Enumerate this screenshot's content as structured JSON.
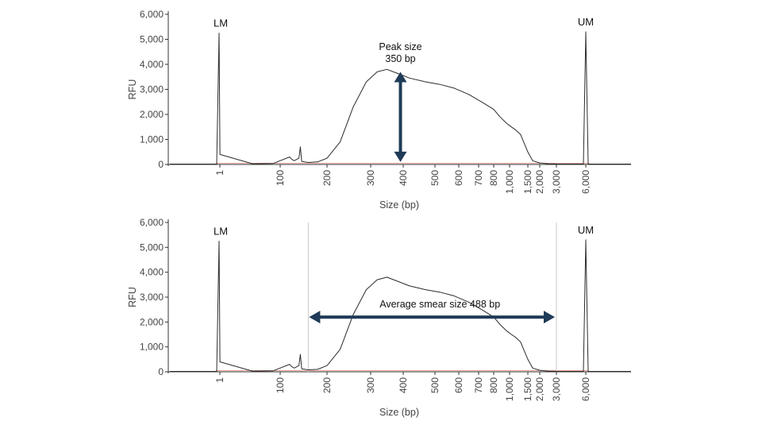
{
  "chart_data": [
    {
      "type": "line",
      "ylabel": "RFU",
      "xlabel": "Size (bp)",
      "ylim": [
        0,
        6000
      ],
      "y_ticks": [
        "6,000",
        "5,000",
        "4,000",
        "3,000",
        "2,000",
        "1,000",
        "0"
      ],
      "y_tick_values": [
        6000,
        5000,
        4000,
        3000,
        2000,
        1000,
        0
      ],
      "x_ticks": [
        "1",
        "100",
        "200",
        "300",
        "400",
        "500",
        "600",
        "700",
        "800",
        "1,000",
        "1,500",
        "2,000",
        "3,000",
        "6,000"
      ],
      "x_tick_values": [
        1,
        100,
        200,
        300,
        400,
        500,
        600,
        700,
        800,
        1000,
        1500,
        2000,
        3000,
        6000
      ],
      "markers": [
        {
          "label": "LM",
          "size": 1,
          "rfu": 5250
        },
        {
          "label": "UM",
          "size": 6000,
          "rfu": 5300
        }
      ],
      "series": [
        {
          "x": [
            1,
            1.2,
            60,
            90,
            120,
            125,
            130,
            140,
            143,
            146,
            160,
            180,
            200,
            230,
            260,
            290,
            320,
            350,
            380,
            420,
            470,
            520,
            580,
            650,
            720,
            800,
            880,
            960,
            1050,
            1150,
            1300,
            1500,
            1700,
            2000,
            2500,
            3000
          ],
          "y": [
            5250,
            400,
            30,
            40,
            300,
            200,
            150,
            250,
            700,
            120,
            80,
            100,
            250,
            900,
            2300,
            3300,
            3700,
            3800,
            3650,
            3450,
            3300,
            3200,
            3050,
            2800,
            2500,
            2200,
            1900,
            1650,
            1500,
            1400,
            1200,
            500,
            150,
            60,
            30,
            20
          ]
        }
      ],
      "annotation": {
        "text_line1": "Peak size",
        "text_line2": "350 bp",
        "size": 350,
        "rfu_from": 3700,
        "rfu_to": 100
      }
    },
    {
      "type": "line",
      "ylabel": "RFU",
      "xlabel": "Size (bp)",
      "ylim": [
        0,
        6000
      ],
      "y_ticks": [
        "6,000",
        "5,000",
        "4,000",
        "3,000",
        "2,000",
        "1,000",
        "0"
      ],
      "y_tick_values": [
        6000,
        5000,
        4000,
        3000,
        2000,
        1000,
        0
      ],
      "x_ticks": [
        "1",
        "100",
        "200",
        "300",
        "400",
        "500",
        "600",
        "700",
        "800",
        "1,000",
        "1,500",
        "2,000",
        "3,000",
        "6,000"
      ],
      "x_tick_values": [
        1,
        100,
        200,
        300,
        400,
        500,
        600,
        700,
        800,
        1000,
        1500,
        2000,
        3000,
        6000
      ],
      "markers": [
        {
          "label": "LM",
          "size": 1,
          "rfu": 5250
        },
        {
          "label": "UM",
          "size": 6000,
          "rfu": 5300
        }
      ],
      "series": [
        {
          "x": [
            1,
            1.2,
            60,
            90,
            120,
            125,
            130,
            140,
            143,
            146,
            160,
            180,
            200,
            230,
            260,
            290,
            320,
            350,
            380,
            420,
            470,
            520,
            580,
            650,
            720,
            800,
            880,
            960,
            1050,
            1150,
            1300,
            1500,
            1700,
            2000,
            2500,
            3000
          ],
          "y": [
            5250,
            400,
            30,
            40,
            300,
            200,
            150,
            250,
            700,
            120,
            80,
            100,
            250,
            900,
            2300,
            3300,
            3700,
            3800,
            3650,
            3450,
            3300,
            3200,
            3050,
            2800,
            2500,
            2200,
            1900,
            1650,
            1500,
            1400,
            1200,
            500,
            150,
            60,
            30,
            20
          ]
        }
      ],
      "smear_region": {
        "from": 160,
        "to": 3000
      },
      "annotation": {
        "text": "Average smear size 488 bp",
        "from": 160,
        "to": 3000,
        "rfu": 2200
      }
    }
  ]
}
